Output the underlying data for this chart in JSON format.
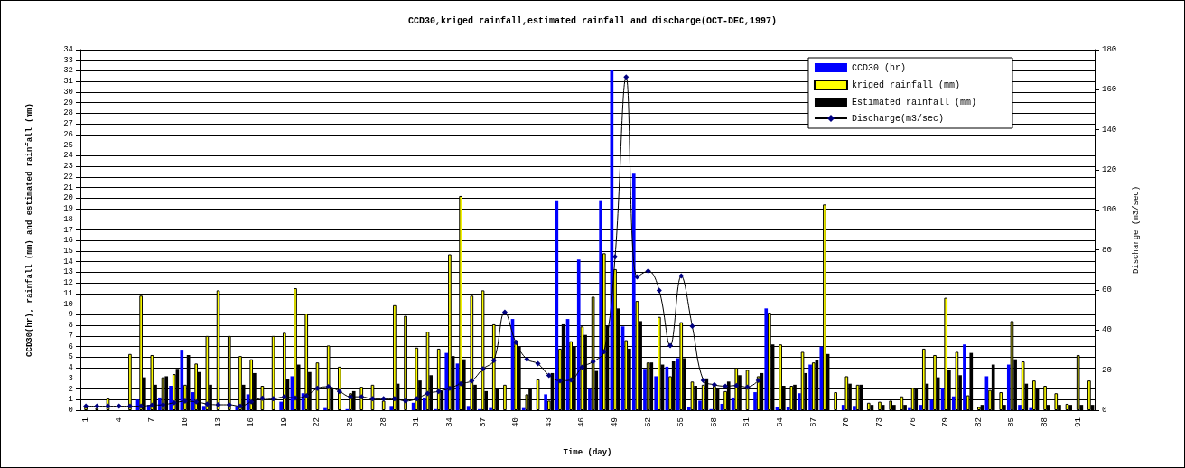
{
  "chart_data": {
    "type": "bar",
    "title": "CCD30,kriged rainfall,estimated rainfall and discharge(OCT-DEC,1997)",
    "xlabel": "Time (day)",
    "ylabel": "CCD30(hr), rainfall (mm) and estimated rainfall (mm)",
    "y2label": "Discharge (m3/sec)",
    "categories": [
      "1",
      null,
      null,
      "4",
      null,
      null,
      "7",
      null,
      null,
      "10",
      null,
      null,
      "13",
      null,
      null,
      "16",
      null,
      null,
      "19",
      null,
      null,
      "22",
      null,
      null,
      "25",
      null,
      null,
      "28",
      null,
      null,
      "31",
      null,
      null,
      "34",
      null,
      null,
      "37",
      null,
      null,
      "40",
      null,
      null,
      "43",
      null,
      null,
      "46",
      null,
      null,
      "49",
      null,
      null,
      "52",
      null,
      null,
      "55",
      null,
      null,
      "58",
      null,
      null,
      "61",
      null,
      null,
      "64",
      null,
      null,
      "67",
      null,
      null,
      "70",
      null,
      null,
      "73",
      null,
      null,
      "76",
      null,
      null,
      "79",
      null,
      null,
      "82",
      null,
      null,
      "85",
      null,
      null,
      "88",
      null,
      null,
      "91",
      null
    ],
    "series": [
      {
        "name": "CCD30 (hr)",
        "color": "#0000ff",
        "values": [
          null,
          null,
          null,
          null,
          null,
          1.0,
          0.5,
          1.2,
          2.3,
          5.7,
          1.7,
          0.4,
          null,
          null,
          0.4,
          1.5,
          null,
          null,
          0.8,
          3.2,
          1.6,
          null,
          0.2,
          null,
          0.1,
          null,
          null,
          null,
          0.4,
          null,
          0.7,
          1.2,
          0.1,
          5.4,
          4.4,
          0.4,
          0.1,
          0.2,
          null,
          8.6,
          0.2,
          null,
          1.5,
          19.8,
          8.6,
          14.2,
          2.0,
          19.8,
          32.1,
          7.9,
          22.3,
          3.9,
          3.2,
          4.1,
          4.9,
          0.3,
          0.9,
          0.1,
          0.6,
          1.2,
          null,
          1.7,
          9.6,
          0.3,
          0.3,
          1.6,
          4.3,
          6.0,
          null,
          0.5,
          0.4,
          null,
          null,
          null,
          null,
          0.2,
          0.5,
          1.0,
          2.1,
          1.3,
          6.2,
          null,
          3.2,
          null,
          4.3,
          0.5,
          0.2,
          null,
          null,
          null,
          null,
          null
        ]
      },
      {
        "name": "kriged rainfall (mm)",
        "color": "#ffff00",
        "values": [
          0.3,
          0.2,
          1.1,
          null,
          5.3,
          10.8,
          5.2,
          3.1,
          3.4,
          2.4,
          4.4,
          7.0,
          11.3,
          7.0,
          5.1,
          4.8,
          2.3,
          7.0,
          7.3,
          11.5,
          9.1,
          4.5,
          6.1,
          4.1,
          1.6,
          2.2,
          2.4,
          0.9,
          9.9,
          8.9,
          5.9,
          7.4,
          5.8,
          14.7,
          20.2,
          10.8,
          11.3,
          8.1,
          2.4,
          6.6,
          1.5,
          2.9,
          0.9,
          5.8,
          6.5,
          7.9,
          10.7,
          14.8,
          13.3,
          6.6,
          10.3,
          4.5,
          8.8,
          3.2,
          8.3,
          2.7,
          2.4,
          2.3,
          1.8,
          4.0,
          3.8,
          3.2,
          9.2,
          6.2,
          2.3,
          5.5,
          4.5,
          19.4,
          1.7,
          3.2,
          2.4,
          0.7,
          0.8,
          0.9,
          1.3,
          2.1,
          5.8,
          5.2,
          10.6,
          5.5,
          1.4,
          0.3,
          1.9,
          1.7,
          8.4,
          4.6,
          2.8,
          2.3,
          1.6,
          0.6,
          5.2,
          2.8
        ]
      },
      {
        "name": "Estimated rainfall (mm)",
        "color": "#000000",
        "values": [
          null,
          null,
          null,
          null,
          null,
          3.1,
          2.4,
          3.2,
          3.9,
          5.2,
          3.6,
          2.4,
          null,
          null,
          2.4,
          3.5,
          null,
          null,
          2.9,
          4.3,
          3.6,
          null,
          2.1,
          null,
          1.8,
          null,
          null,
          null,
          2.5,
          null,
          2.8,
          3.3,
          1.8,
          5.1,
          4.8,
          2.4,
          1.8,
          2.1,
          null,
          6.0,
          2.1,
          null,
          3.5,
          8.1,
          6.0,
          7.1,
          3.7,
          8.0,
          9.6,
          5.8,
          8.4,
          4.5,
          4.3,
          4.6,
          4.9,
          2.3,
          3.0,
          2.0,
          2.7,
          3.3,
          null,
          3.5,
          6.2,
          2.3,
          2.4,
          3.5,
          4.7,
          5.3,
          null,
          2.5,
          2.4,
          0.5,
          0.5,
          0.5,
          0.5,
          2.0,
          2.5,
          3.1,
          3.8,
          3.3,
          5.4,
          0.5,
          4.3,
          0.5,
          4.8,
          2.5,
          2.1,
          0.5,
          0.5,
          0.5,
          0.5,
          0.5
        ]
      },
      {
        "name": "Discharge(m3/sec)",
        "type": "line",
        "axis": "y2",
        "color": "#000080",
        "marker": "diamond",
        "values": [
          2,
          2,
          2,
          2,
          2,
          2,
          2.5,
          2.7,
          3.7,
          4.5,
          4.2,
          3.1,
          2.7,
          2.7,
          2.0,
          4.2,
          6.0,
          5.7,
          6.7,
          6.1,
          7.2,
          10.9,
          11.7,
          9.4,
          6.7,
          6.7,
          5.7,
          5.7,
          5.7,
          4.6,
          5.7,
          8.4,
          9.4,
          10.9,
          13.2,
          14.7,
          20.6,
          24.8,
          49,
          33.8,
          25.4,
          23.2,
          17.4,
          14.7,
          15.1,
          21.4,
          24.2,
          29.2,
          76.6,
          166.4,
          66.5,
          69.5,
          59.8,
          32.2,
          67,
          41.9,
          14.9,
          12.7,
          12.0,
          12.3,
          11.5,
          14.9,
          null,
          null,
          null,
          null,
          null,
          null,
          null,
          null,
          null,
          null,
          null,
          null,
          null,
          null,
          null,
          null,
          null,
          null,
          null,
          null,
          null,
          null,
          null,
          null,
          null,
          null,
          null,
          null,
          null,
          null
        ]
      }
    ],
    "ylim": [
      0,
      34
    ],
    "yticks": [
      0,
      1,
      2,
      3,
      4,
      5,
      6,
      7,
      8,
      9,
      10,
      11,
      12,
      13,
      14,
      15,
      16,
      17,
      18,
      19,
      20,
      21,
      22,
      23,
      24,
      25,
      26,
      27,
      28,
      29,
      30,
      31,
      32,
      33,
      34
    ],
    "y2lim": [
      0,
      180
    ],
    "y2ticks": [
      0,
      20,
      40,
      60,
      80,
      100,
      120,
      140,
      160,
      180
    ],
    "grid": "y",
    "legend": "top right"
  }
}
